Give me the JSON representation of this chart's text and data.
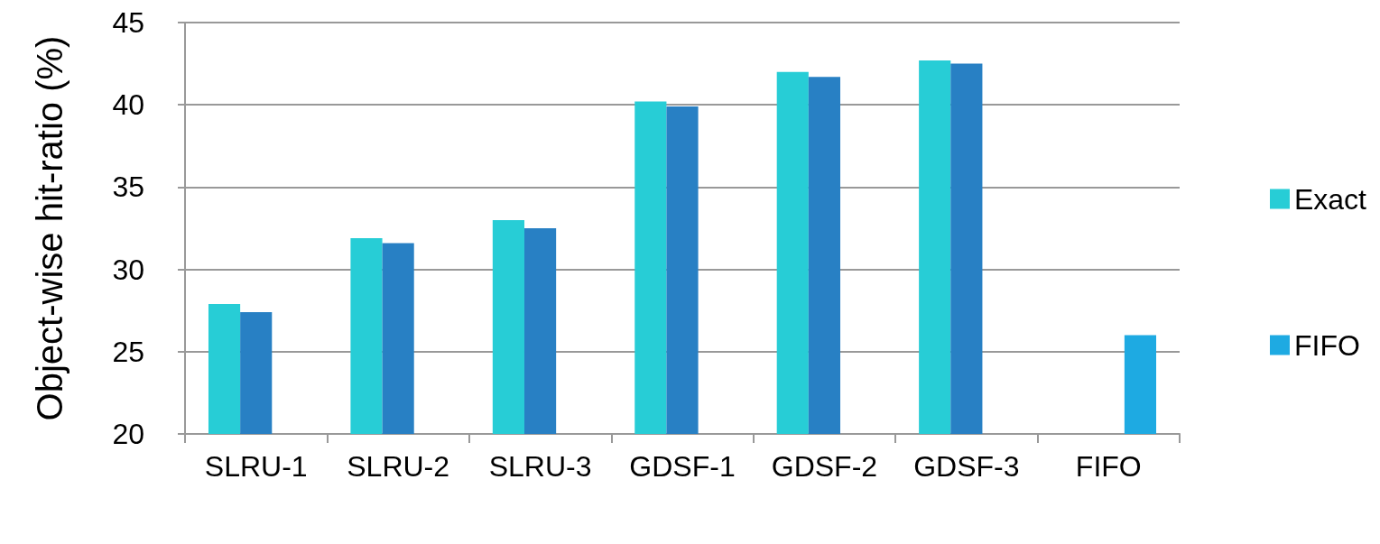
{
  "chart_data": {
    "type": "bar",
    "ylabel": "Object-wise hit-ratio (%)",
    "categories": [
      "SLRU-1",
      "SLRU-2",
      "SLRU-3",
      "GDSF-1",
      "GDSF-2",
      "GDSF-3",
      "FIFO"
    ],
    "series": [
      {
        "name": "Exact",
        "color": "#27cdd6",
        "values": [
          27.9,
          31.9,
          33.0,
          40.2,
          42.0,
          42.7,
          null
        ]
      },
      {
        "color": "#2880c4",
        "values": [
          27.4,
          31.6,
          32.5,
          39.9,
          41.7,
          42.5,
          null
        ]
      },
      {
        "name": "FIFO",
        "color": "#1eaae2",
        "values": [
          null,
          null,
          null,
          null,
          null,
          null,
          26.0
        ]
      }
    ],
    "ylim": [
      20,
      45
    ],
    "yticks": [
      20,
      25,
      30,
      35,
      40,
      45
    ],
    "grid": "y",
    "legend": "right"
  }
}
